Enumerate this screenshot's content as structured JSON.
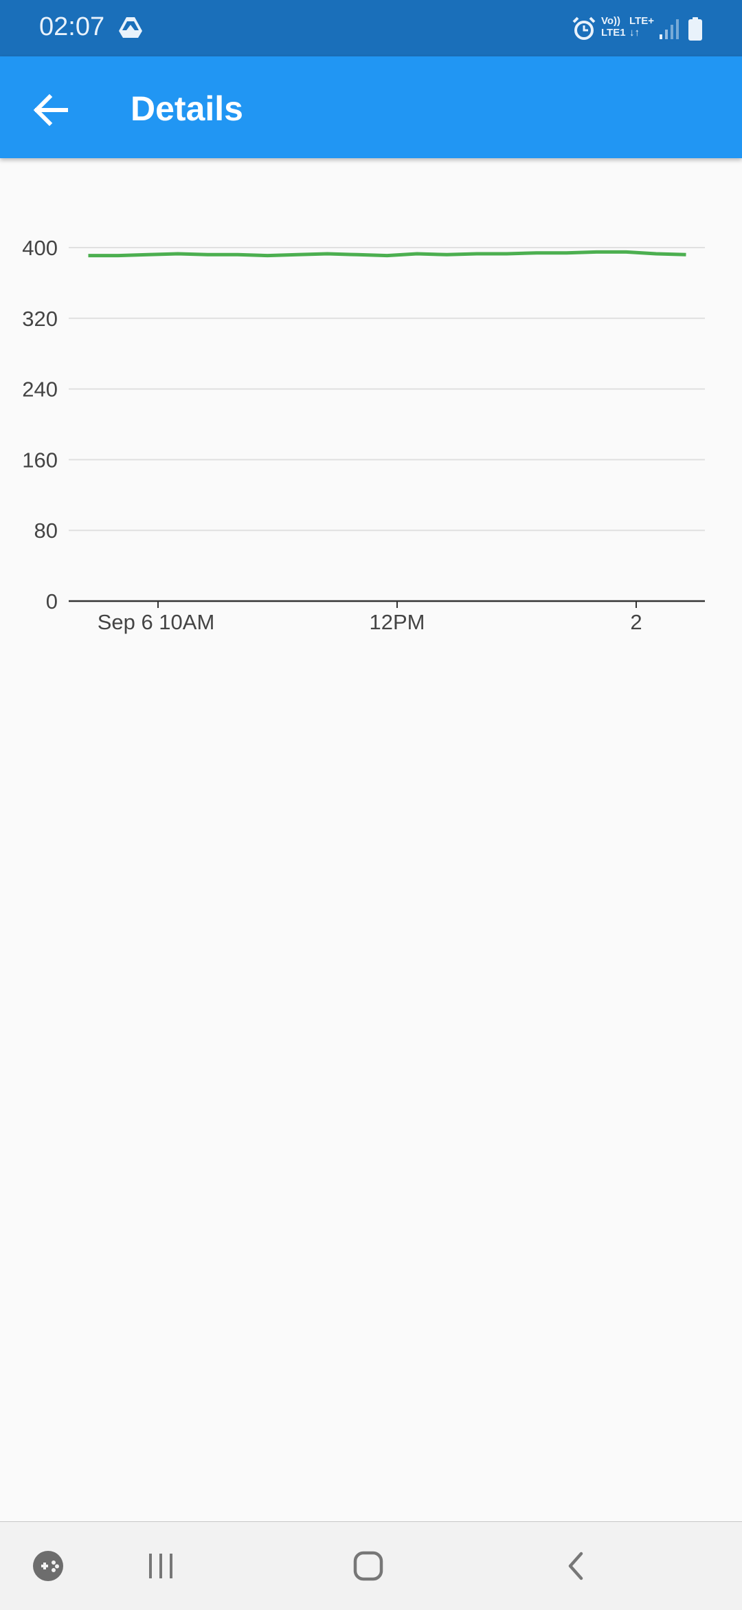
{
  "status_bar": {
    "time": "02:07",
    "network_line1": "Vo))",
    "network_line2": "LTE1",
    "network_line3": "LTE+",
    "network_line4": "↓↑",
    "icons": [
      "drive-icon",
      "alarm-icon",
      "signal-icon",
      "battery-icon"
    ]
  },
  "app_bar": {
    "title": "Details",
    "back_icon": "arrow-left-icon",
    "background": "#2196f3"
  },
  "chart_data": {
    "type": "line",
    "title": "",
    "xlabel": "",
    "ylabel": "",
    "ylim": [
      0,
      400
    ],
    "y_ticks": [
      "0",
      "80",
      "160",
      "240",
      "320",
      "400"
    ],
    "x_ticks": [
      "Sep 6 10AM",
      "12PM",
      "2"
    ],
    "grid": true,
    "series": [
      {
        "color": "#4caf50",
        "x": [
          "Sep 6 09:25",
          "Sep 6 09:40",
          "Sep 6 09:55",
          "Sep 6 10:10",
          "Sep 6 10:25",
          "Sep 6 10:40",
          "Sep 6 10:55",
          "Sep 6 11:10",
          "Sep 6 11:25",
          "Sep 6 11:40",
          "Sep 6 11:55",
          "Sep 6 12:10",
          "Sep 6 12:25",
          "Sep 6 12:40",
          "Sep 6 12:55",
          "Sep 6 13:10",
          "Sep 6 13:25",
          "Sep 6 13:40",
          "Sep 6 13:55",
          "Sep 6 14:10",
          "Sep 6 14:25"
        ],
        "values": [
          391,
          391,
          392,
          393,
          392,
          392,
          391,
          392,
          393,
          392,
          391,
          393,
          392,
          393,
          393,
          394,
          394,
          395,
          395,
          393,
          392
        ]
      }
    ]
  },
  "nav_bar": {
    "icons": [
      "game-launcher-icon",
      "recent-apps-icon",
      "home-icon",
      "back-chevron-icon"
    ]
  }
}
